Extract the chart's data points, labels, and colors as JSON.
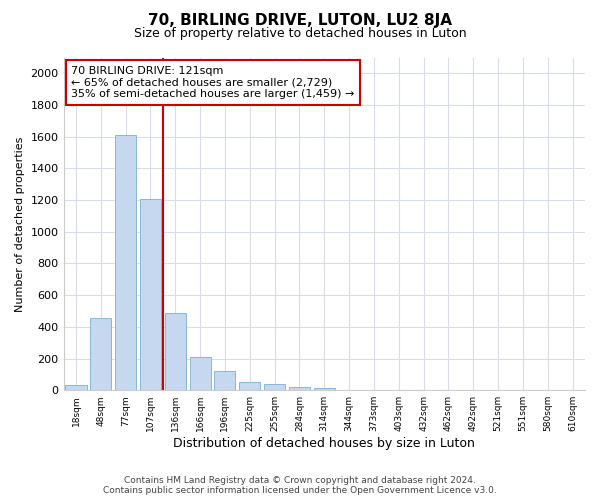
{
  "title": "70, BIRLING DRIVE, LUTON, LU2 8JA",
  "subtitle": "Size of property relative to detached houses in Luton",
  "xlabel": "Distribution of detached houses by size in Luton",
  "ylabel": "Number of detached properties",
  "bin_labels": [
    "18sqm",
    "48sqm",
    "77sqm",
    "107sqm",
    "136sqm",
    "166sqm",
    "196sqm",
    "225sqm",
    "255sqm",
    "284sqm",
    "314sqm",
    "344sqm",
    "373sqm",
    "403sqm",
    "432sqm",
    "462sqm",
    "492sqm",
    "521sqm",
    "551sqm",
    "580sqm",
    "610sqm"
  ],
  "bar_values": [
    35,
    455,
    1610,
    1205,
    490,
    210,
    120,
    50,
    38,
    22,
    12,
    0,
    0,
    0,
    0,
    0,
    0,
    0,
    0,
    0,
    0
  ],
  "bar_color": "#c5d8f0",
  "bar_edge_color": "#7aafd4",
  "property_label": "70 BIRLING DRIVE: 121sqm",
  "annotation_line1": "← 65% of detached houses are smaller (2,729)",
  "annotation_line2": "35% of semi-detached houses are larger (1,459) →",
  "vline_color": "#cc0000",
  "vline_x": 3.5,
  "annotation_box_facecolor": "#ffffff",
  "annotation_box_edgecolor": "#cc0000",
  "ylim": [
    0,
    2100
  ],
  "yticks": [
    0,
    200,
    400,
    600,
    800,
    1000,
    1200,
    1400,
    1600,
    1800,
    2000
  ],
  "footer_line1": "Contains HM Land Registry data © Crown copyright and database right 2024.",
  "footer_line2": "Contains public sector information licensed under the Open Government Licence v3.0.",
  "bg_color": "#ffffff",
  "plot_bg_color": "#ffffff",
  "grid_color": "#d8dce8",
  "title_fontsize": 11,
  "subtitle_fontsize": 9,
  "ylabel_fontsize": 8,
  "xlabel_fontsize": 9
}
